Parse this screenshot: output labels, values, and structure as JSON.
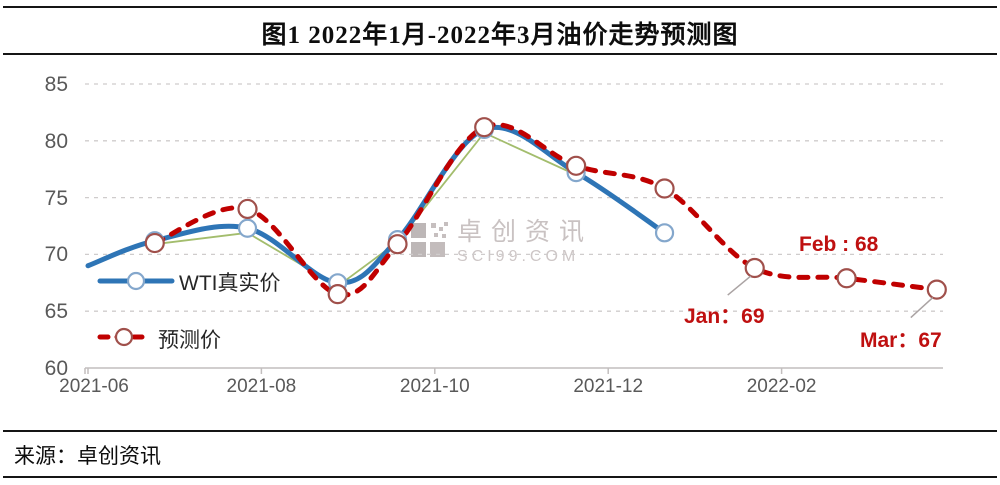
{
  "title": "图1 2022年1月-2022年3月油价走势预测图",
  "source": "来源：卓创资讯",
  "watermark": {
    "line1": "卓创资讯",
    "line2": "SCI99.COM"
  },
  "colors": {
    "actual_blue": "#2e75b6",
    "forecast_red": "#c00000",
    "trend_green": "#a3bd6d",
    "annotation_red": "#bf1010",
    "grid_gray": "#cfcccc",
    "axis_gray": "#c2bebe",
    "label_gray": "#595959",
    "watermark_gray": "#c9c2c2",
    "marker_blue": "#84a7cc",
    "marker_maroon": "#a0504b",
    "leader_gray": "#aaa3a3"
  },
  "chart_data": {
    "type": "line",
    "title": "图1 2022年1月-2022年3月油价走势预测图",
    "x_unit": "months since 2021-06",
    "x_axis": {
      "tick_labels": [
        "2021-06",
        "2021-08",
        "2021-10",
        "2021-12",
        "2022-02"
      ],
      "tick_positions_months": [
        0,
        2,
        4,
        6,
        8
      ]
    },
    "y_axis": {
      "min": 60,
      "max": 85,
      "tick_step": 5,
      "ticks": [
        60,
        65,
        70,
        75,
        80,
        85
      ]
    },
    "grid": "dashed-horizontal",
    "legend_position": "inside-left",
    "series": [
      {
        "id": "wti-actual",
        "name": "WTI真实价",
        "color": "#2e75b6",
        "line": "solid",
        "width": 5,
        "smooth": true,
        "marker": true,
        "marker_skip_first": true,
        "marker_color": "#84a7cc",
        "marker_r": 8.5,
        "points": [
          [
            0,
            69.0
          ],
          [
            0.77,
            71.2
          ],
          [
            1.84,
            72.3
          ],
          [
            2.88,
            67.5
          ],
          [
            3.57,
            71.3
          ],
          [
            4.57,
            81.0
          ],
          [
            5.63,
            77.2
          ],
          [
            6.65,
            71.9
          ]
        ]
      },
      {
        "id": "forecast",
        "name": "预测价",
        "color": "#c00000",
        "line": "dashed",
        "width": 5,
        "smooth": true,
        "marker": true,
        "marker_skip_first": false,
        "marker_color": "#a0504b",
        "marker_r": 9,
        "points": [
          [
            0.77,
            71.0
          ],
          [
            1.84,
            74.0
          ],
          [
            2.88,
            66.5
          ],
          [
            3.57,
            70.9
          ],
          [
            4.57,
            81.2
          ],
          [
            5.63,
            77.8
          ],
          [
            6.65,
            75.8
          ],
          [
            7.69,
            68.8
          ],
          [
            8.75,
            67.9
          ],
          [
            9.79,
            66.9
          ]
        ]
      },
      {
        "id": "trend-thin",
        "name": "",
        "color": "#a3bd6d",
        "line": "solid",
        "width": 1.8,
        "smooth": false,
        "marker": false,
        "points": [
          [
            0.77,
            70.9
          ],
          [
            1.84,
            71.9
          ],
          [
            2.88,
            67.2
          ],
          [
            3.57,
            71.1
          ],
          [
            4.57,
            80.7
          ],
          [
            5.63,
            77.0
          ]
        ]
      }
    ],
    "annotations": [
      {
        "text": "Jan：69",
        "month": "2022-01",
        "value": 69,
        "x": 7.69
      },
      {
        "text": "Feb : 68",
        "month": "2022-02",
        "value": 68,
        "x": 8.75
      },
      {
        "text": "Mar：67",
        "month": "2022-03",
        "value": 67,
        "x": 9.79
      }
    ]
  }
}
